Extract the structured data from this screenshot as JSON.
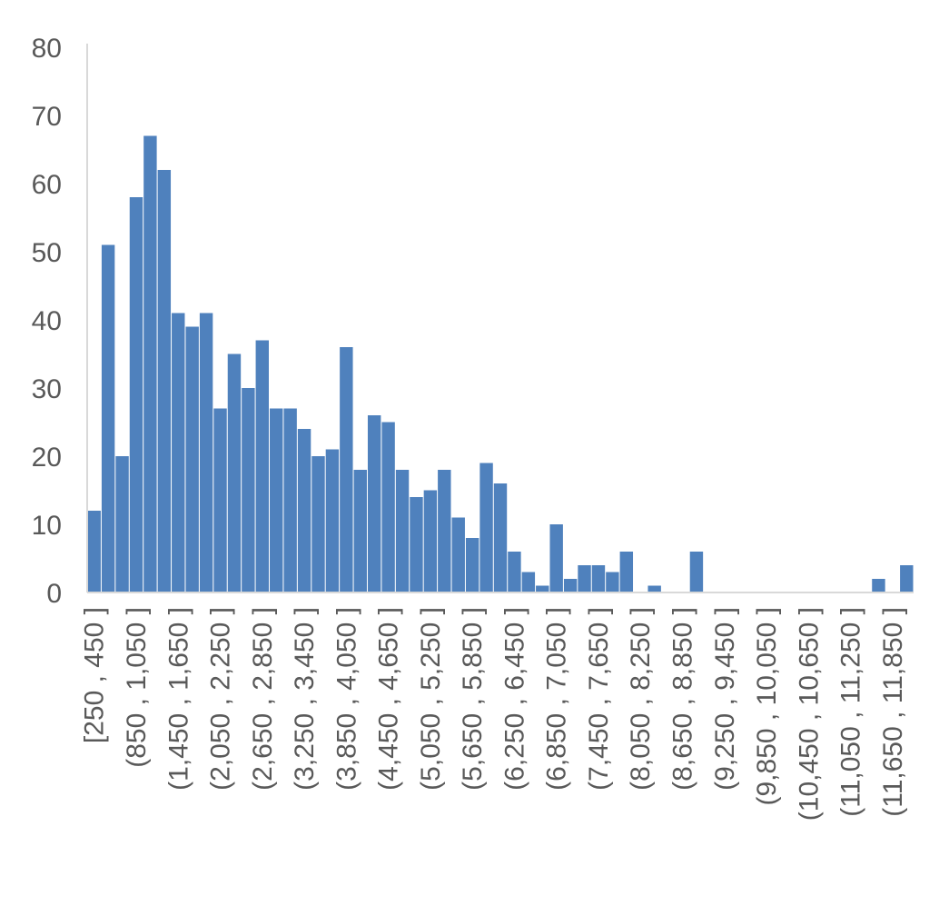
{
  "chart_data": {
    "type": "bar",
    "title": "",
    "xlabel": "",
    "ylabel": "",
    "ylim": [
      0,
      80
    ],
    "yticks": [
      0,
      10,
      20,
      30,
      40,
      50,
      60,
      70,
      80
    ],
    "grid": false,
    "bar_color": "#4F81BD",
    "axis_color": "#D9D9D9",
    "tick_color": "#595959",
    "categories": [
      "[250 , 450 ]",
      "(450 , 650 ]",
      "(650 , 850 ]",
      "(850 , 1,050 ]",
      "(1,050 , 1,250 ]",
      "(1,250 , 1,450 ]",
      "(1,450 , 1,650 ]",
      "(1,650 , 1,850 ]",
      "(1,850 , 2,050 ]",
      "(2,050 , 2,250 ]",
      "(2,250 , 2,450 ]",
      "(2,450 , 2,650 ]",
      "(2,650 , 2,850 ]",
      "(2,850 , 3,050 ]",
      "(3,050 , 3,250 ]",
      "(3,250 , 3,450 ]",
      "(3,450 , 3,650 ]",
      "(3,650 , 3,850 ]",
      "(3,850 , 4,050 ]",
      "(4,050 , 4,250 ]",
      "(4,250 , 4,450 ]",
      "(4,450 , 4,650 ]",
      "(4,650 , 4,850 ]",
      "(4,850 , 5,050 ]",
      "(5,050 , 5,250 ]",
      "(5,250 , 5,450 ]",
      "(5,450 , 5,650 ]",
      "(5,650 , 5,850 ]",
      "(5,850 , 6,050 ]",
      "(6,050 , 6,250 ]",
      "(6,250 , 6,450 ]",
      "(6,450 , 6,650 ]",
      "(6,650 , 6,850 ]",
      "(6,850 , 7,050 ]",
      "(7,050 , 7,250 ]",
      "(7,250 , 7,450 ]",
      "(7,450 , 7,650 ]",
      "(7,650 , 7,850 ]",
      "(7,850 , 8,050 ]",
      "(8,050 , 8,250 ]",
      "(8,250 , 8,450 ]",
      "(8,450 , 8,650 ]",
      "(8,650 , 8,850 ]",
      "(8,850 , 9,050 ]",
      "(9,050 , 9,250 ]",
      "(9,250 , 9,450 ]",
      "(9,450 , 9,650 ]",
      "(9,650 , 9,850 ]",
      "(9,850 , 10,050 ]",
      "(10,050 , 10,250 ]",
      "(10,250 , 10,450 ]",
      "(10,450 , 10,650 ]",
      "(10,650 , 10,850 ]",
      "(10,850 , 11,050 ]",
      "(11,050 , 11,250 ]",
      "(11,250 , 11,450 ]",
      "(11,450 , 11,650 ]",
      "(11,650 , 11,850 ]",
      "(11,850 , 12,050 ]"
    ],
    "values": [
      12,
      51,
      20,
      58,
      67,
      62,
      41,
      39,
      41,
      27,
      35,
      30,
      37,
      27,
      27,
      24,
      20,
      21,
      36,
      18,
      26,
      25,
      18,
      14,
      15,
      18,
      11,
      8,
      19,
      16,
      6,
      3,
      1,
      10,
      2,
      4,
      4,
      3,
      6,
      0,
      1,
      0,
      0,
      6,
      0,
      0,
      0,
      0,
      0,
      0,
      0,
      0,
      0,
      0,
      0,
      0,
      2,
      0,
      4
    ],
    "label_every": 3
  }
}
